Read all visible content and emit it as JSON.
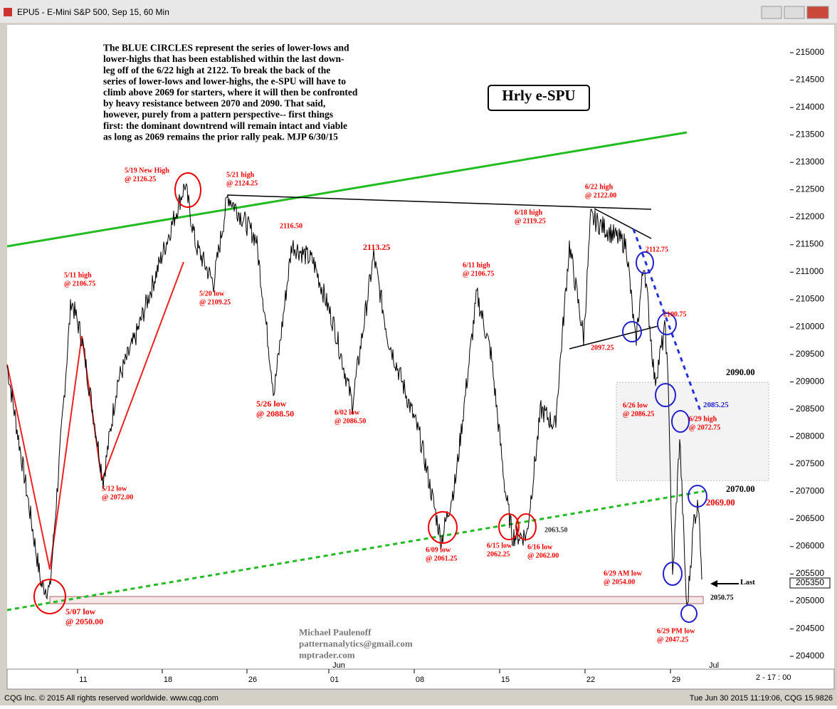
{
  "window": {
    "title": "EPU5 - E-Mini S&P 500, Sep 15, 60 Min"
  },
  "commentary": [
    "The BLUE CIRCLES represent the series of lower-lows and",
    "lower-highs that has been established within the last down-",
    "leg off of the 6/22 high at 2122. To break the back of the",
    "series of lower-lows and lower-highs, the e-SPU will have to",
    "climb above 2069 for starters, where it will then be confronted",
    "by heavy resistance between 2070 and 2090. That said,",
    "however, purely from a pattern perspective-- first things",
    "first: the dominant downtrend will remain intact and viable",
    "as long as 2069 remains the prior rally peak.  MJP 6/30/15"
  ],
  "badge": "Hrly e-SPU",
  "annotations": [
    {
      "lines": [
        "5/19 New High",
        "@ 2126.25"
      ]
    },
    {
      "lines": [
        "5/21 high",
        "@ 2124.25"
      ]
    },
    {
      "lines": [
        "5/11 high",
        "@ 2106.75"
      ]
    },
    {
      "lines": [
        "5/20 low",
        "@ 2109.25"
      ]
    },
    {
      "lines": [
        "2116.50"
      ]
    },
    {
      "lines": [
        "2113.25"
      ]
    },
    {
      "lines": [
        "5/26 low",
        "@ 2088.50"
      ]
    },
    {
      "lines": [
        "6/02 low",
        "@ 2086.50"
      ]
    },
    {
      "lines": [
        "6/11 high",
        "@ 2106.75"
      ]
    },
    {
      "lines": [
        "6/18 high",
        "@ 2119.25"
      ]
    },
    {
      "lines": [
        "6/22 high",
        "@ 2122.00"
      ]
    },
    {
      "lines": [
        "5/12 low",
        "@ 2072.00"
      ]
    },
    {
      "lines": [
        "5/07 low",
        "@ 2050.00"
      ]
    },
    {
      "lines": [
        "6/09 low",
        "@ 2061.25"
      ]
    },
    {
      "lines": [
        "6/15 low",
        "2062.25"
      ]
    },
    {
      "lines": [
        "6/16 low",
        "@ 2062.00"
      ]
    },
    {
      "lines": [
        "6/26 low",
        "@ 2086.25"
      ]
    },
    {
      "lines": [
        "6/29 high",
        "@ 2072.75"
      ]
    },
    {
      "lines": [
        "6/29 AM low",
        "@ 2054.00"
      ]
    },
    {
      "lines": [
        "6/29 PM low",
        "@ 2047.25"
      ]
    },
    {
      "lines": [
        "2097.25"
      ]
    },
    {
      "lines": [
        "2112.75"
      ]
    },
    {
      "lines": [
        "2100.75"
      ]
    },
    {
      "lines": [
        "2069.00"
      ]
    },
    {
      "lines": [
        "2063.50"
      ]
    },
    {
      "lines": [
        "2085.25"
      ]
    },
    {
      "lines": [
        "2090.00"
      ]
    },
    {
      "lines": [
        "2070.00"
      ]
    },
    {
      "lines": [
        "2050.75"
      ]
    },
    {
      "lines": [
        "Last"
      ]
    }
  ],
  "credit": [
    "Michael Paulenoff",
    "patternanalytics@gmail.com",
    "mptrader.com"
  ],
  "price_axis": [
    "215000",
    "214500",
    "214000",
    "213500",
    "213000",
    "212500",
    "212000",
    "211500",
    "211000",
    "210500",
    "210000",
    "209500",
    "209000",
    "208500",
    "208000",
    "207500",
    "207000",
    "206500",
    "206000",
    "205500",
    "205000",
    "204500",
    "204000"
  ],
  "last_price": "205350",
  "date_axis": [
    "11",
    "18",
    "26",
    "01",
    "08",
    "15",
    "22",
    "29"
  ],
  "month_labels": [
    "Jun",
    "Jul"
  ],
  "time_label": "2 - 17 : 00",
  "status": {
    "left": "CQG Inc. © 2015 All rights reserved worldwide. www.cqg.com",
    "right": "Tue Jun 30 2015 11:19:06, CQG 15.9826"
  }
}
